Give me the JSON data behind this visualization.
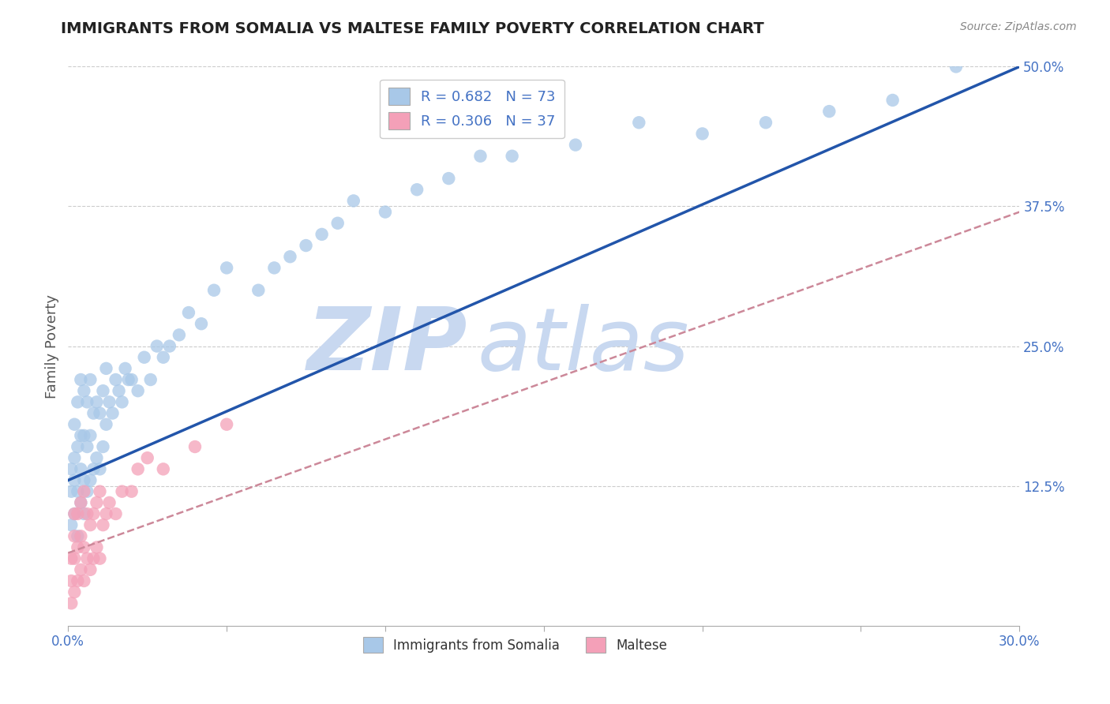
{
  "title": "IMMIGRANTS FROM SOMALIA VS MALTESE FAMILY POVERTY CORRELATION CHART",
  "source_text": "Source: ZipAtlas.com",
  "ylabel": "Family Poverty",
  "xlim": [
    0.0,
    0.3
  ],
  "ylim": [
    0.0,
    0.5
  ],
  "xticks": [
    0.0,
    0.05,
    0.1,
    0.15,
    0.2,
    0.25,
    0.3
  ],
  "xticklabels": [
    "0.0%",
    "",
    "",
    "",
    "",
    "",
    "30.0%"
  ],
  "yticks": [
    0.0,
    0.125,
    0.25,
    0.375,
    0.5
  ],
  "yticklabels": [
    "",
    "12.5%",
    "25.0%",
    "37.5%",
    "50.0%"
  ],
  "R_somalia": 0.682,
  "N_somalia": 73,
  "R_maltese": 0.306,
  "N_maltese": 37,
  "color_somalia": "#A8C8E8",
  "color_maltese": "#F4A0B8",
  "line_color_somalia": "#2255AA",
  "line_color_maltese": "#CC6688",
  "line_dashed_color": "#CC8899",
  "grid_color": "#CCCCCC",
  "axis_label_color": "#4472C4",
  "title_color": "#222222",
  "watermark_color": "#C8D8F0",
  "legend_label_somalia": "Immigrants from Somalia",
  "legend_label_maltese": "Maltese",
  "somalia_x": [
    0.001,
    0.001,
    0.001,
    0.002,
    0.002,
    0.002,
    0.002,
    0.003,
    0.003,
    0.003,
    0.003,
    0.004,
    0.004,
    0.004,
    0.004,
    0.005,
    0.005,
    0.005,
    0.005,
    0.006,
    0.006,
    0.006,
    0.007,
    0.007,
    0.007,
    0.008,
    0.008,
    0.009,
    0.009,
    0.01,
    0.01,
    0.011,
    0.011,
    0.012,
    0.012,
    0.013,
    0.014,
    0.015,
    0.016,
    0.017,
    0.018,
    0.019,
    0.02,
    0.022,
    0.024,
    0.026,
    0.028,
    0.03,
    0.032,
    0.035,
    0.038,
    0.042,
    0.046,
    0.05,
    0.06,
    0.065,
    0.07,
    0.075,
    0.08,
    0.085,
    0.09,
    0.1,
    0.11,
    0.12,
    0.13,
    0.14,
    0.16,
    0.18,
    0.2,
    0.22,
    0.24,
    0.26,
    0.28
  ],
  "somalia_y": [
    0.09,
    0.12,
    0.14,
    0.1,
    0.13,
    0.15,
    0.18,
    0.08,
    0.12,
    0.16,
    0.2,
    0.11,
    0.14,
    0.17,
    0.22,
    0.1,
    0.13,
    0.17,
    0.21,
    0.12,
    0.16,
    0.2,
    0.13,
    0.17,
    0.22,
    0.14,
    0.19,
    0.15,
    0.2,
    0.14,
    0.19,
    0.16,
    0.21,
    0.18,
    0.23,
    0.2,
    0.19,
    0.22,
    0.21,
    0.2,
    0.23,
    0.22,
    0.22,
    0.21,
    0.24,
    0.22,
    0.25,
    0.24,
    0.25,
    0.26,
    0.28,
    0.27,
    0.3,
    0.32,
    0.3,
    0.32,
    0.33,
    0.34,
    0.35,
    0.36,
    0.38,
    0.37,
    0.39,
    0.4,
    0.42,
    0.42,
    0.43,
    0.45,
    0.44,
    0.45,
    0.46,
    0.47,
    0.5
  ],
  "maltese_x": [
    0.001,
    0.001,
    0.001,
    0.002,
    0.002,
    0.002,
    0.002,
    0.003,
    0.003,
    0.003,
    0.004,
    0.004,
    0.004,
    0.005,
    0.005,
    0.005,
    0.006,
    0.006,
    0.007,
    0.007,
    0.008,
    0.008,
    0.009,
    0.009,
    0.01,
    0.01,
    0.011,
    0.012,
    0.013,
    0.015,
    0.017,
    0.02,
    0.022,
    0.025,
    0.03,
    0.04,
    0.05
  ],
  "maltese_y": [
    0.02,
    0.04,
    0.06,
    0.03,
    0.06,
    0.08,
    0.1,
    0.04,
    0.07,
    0.1,
    0.05,
    0.08,
    0.11,
    0.04,
    0.07,
    0.12,
    0.06,
    0.1,
    0.05,
    0.09,
    0.06,
    0.1,
    0.07,
    0.11,
    0.06,
    0.12,
    0.09,
    0.1,
    0.11,
    0.1,
    0.12,
    0.12,
    0.14,
    0.15,
    0.14,
    0.16,
    0.18
  ],
  "blue_line_x0": 0.0,
  "blue_line_y0": 0.13,
  "blue_line_x1": 0.3,
  "blue_line_y1": 0.5,
  "pink_line_x0": 0.0,
  "pink_line_y0": 0.065,
  "pink_line_x1": 0.3,
  "pink_line_y1": 0.37
}
